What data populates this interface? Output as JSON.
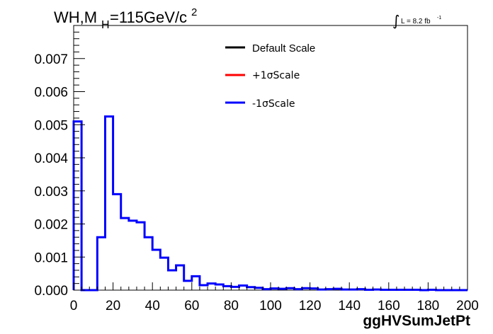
{
  "chart_data": {
    "type": "line",
    "title_main": "WH,M",
    "title_sub": "H",
    "title_rest": "=115GeV/c",
    "title_sup": "2",
    "lumi_integral": "∫",
    "lumi_text": "L = 8.2 fb",
    "lumi_sup": "-1",
    "xlabel": "ggHVSumJetPt",
    "xlim": [
      0,
      200
    ],
    "ylim": [
      0,
      0.008
    ],
    "x_ticks": [
      0,
      20,
      40,
      60,
      80,
      100,
      120,
      140,
      160,
      180,
      200
    ],
    "x_tick_labels": [
      "0",
      "20",
      "40",
      "60",
      "80",
      "100",
      "120",
      "140",
      "160",
      "180",
      "200"
    ],
    "y_ticks": [
      0,
      0.001,
      0.002,
      0.003,
      0.004,
      0.005,
      0.006,
      0.007
    ],
    "y_tick_labels": [
      "0.000",
      "0.001",
      "0.002",
      "0.003",
      "0.004",
      "0.005",
      "0.006",
      "0.007"
    ],
    "legend": [
      {
        "label": "Default Scale",
        "color": "#000000"
      },
      {
        "label": "+1σScale",
        "color": "#ff0000"
      },
      {
        "label": "-1σScale",
        "color": "#0000ff"
      }
    ],
    "bin_width": 4,
    "series": [
      {
        "name": "-1σScale",
        "color": "#0000ff",
        "values": [
          0.0051,
          0.0,
          0.0,
          0.0016,
          0.00525,
          0.0029,
          0.00218,
          0.0021,
          0.00205,
          0.0016,
          0.00122,
          0.00098,
          0.0006,
          0.00075,
          0.00028,
          0.00042,
          0.00015,
          0.0002,
          0.00017,
          0.00012,
          0.0001,
          0.00014,
          9e-05,
          7e-05,
          3e-05,
          5e-05,
          4e-05,
          6e-05,
          3e-05,
          6e-05,
          5e-05,
          2e-05,
          3e-05,
          4e-05,
          2e-05,
          2e-05,
          3e-05,
          1e-05,
          2e-05,
          1e-05,
          1e-05,
          1e-05,
          1e-05,
          1e-05,
          0.0,
          1e-05,
          0.0,
          0.0,
          0.0,
          0.0
        ]
      }
    ]
  }
}
